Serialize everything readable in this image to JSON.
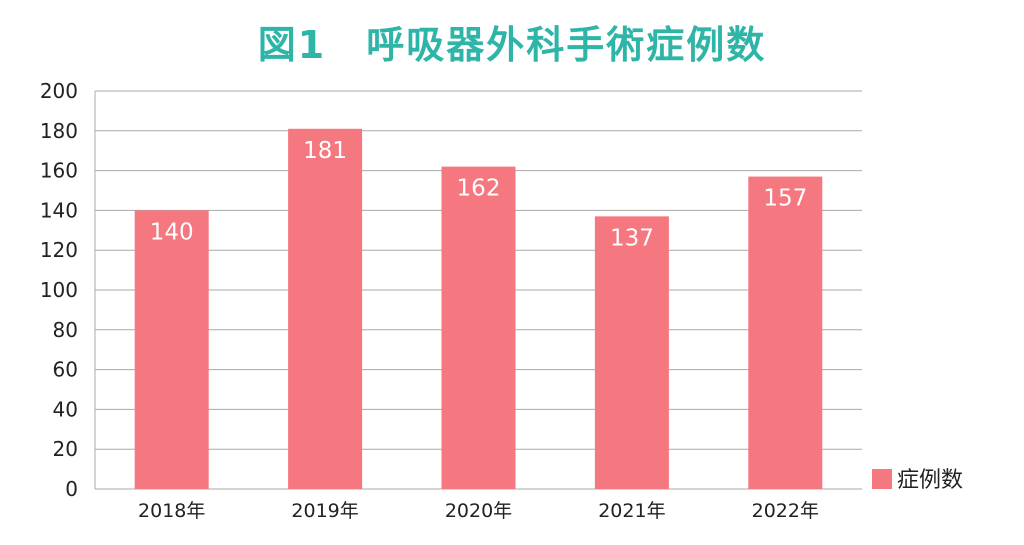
{
  "chart_data": {
    "type": "bar",
    "title": "図1　呼吸器外科手術症例数",
    "categories": [
      "2018年",
      "2019年",
      "2020年",
      "2021年",
      "2022年"
    ],
    "series": [
      {
        "name": "症例数",
        "values": [
          140,
          181,
          162,
          137,
          157
        ]
      }
    ],
    "ylim": [
      0,
      200
    ],
    "yticks": [
      0,
      20,
      40,
      60,
      80,
      100,
      120,
      140,
      160,
      180,
      200
    ],
    "grid": true,
    "legend_position": "bottom-right",
    "colors": {
      "bar": "#f5777f",
      "title": "#2eb5a8",
      "grid": "#aaaaaa"
    }
  }
}
